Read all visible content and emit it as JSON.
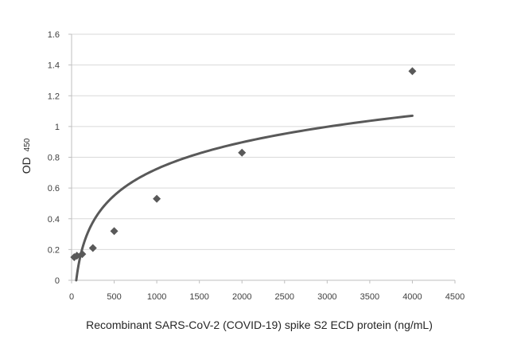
{
  "chart_data": {
    "type": "scatter",
    "title": "",
    "xlabel": "Recombinant SARS-CoV-2 (COVID-19) spike S2 ECD protein (ng/mL)",
    "ylabel": "OD",
    "ylabel_subscript": "450",
    "xlim": [
      0,
      4500
    ],
    "ylim": [
      0,
      1.6
    ],
    "x_ticks": [
      0,
      500,
      1000,
      1500,
      2000,
      2500,
      3000,
      3500,
      4000,
      4500
    ],
    "y_ticks": [
      "0",
      "0.2",
      "0.4",
      "0.6",
      "0.8",
      "1",
      "1.2",
      "1.4",
      "1.6"
    ],
    "grid": "horizontal",
    "legend": "none",
    "series": [
      {
        "type": "scatter",
        "marker": "diamond",
        "color": "#595959",
        "x": [
          31.25,
          62.5,
          125,
          250,
          500,
          1000,
          2000,
          4000
        ],
        "y": [
          0.15,
          0.16,
          0.17,
          0.21,
          0.32,
          0.53,
          0.83,
          1.36
        ]
      },
      {
        "type": "trendline-logarithmic",
        "color": "#595959",
        "x_range": [
          55,
          4000
        ],
        "y_at_start": 0.0,
        "y_at_end": 1.07
      }
    ]
  }
}
